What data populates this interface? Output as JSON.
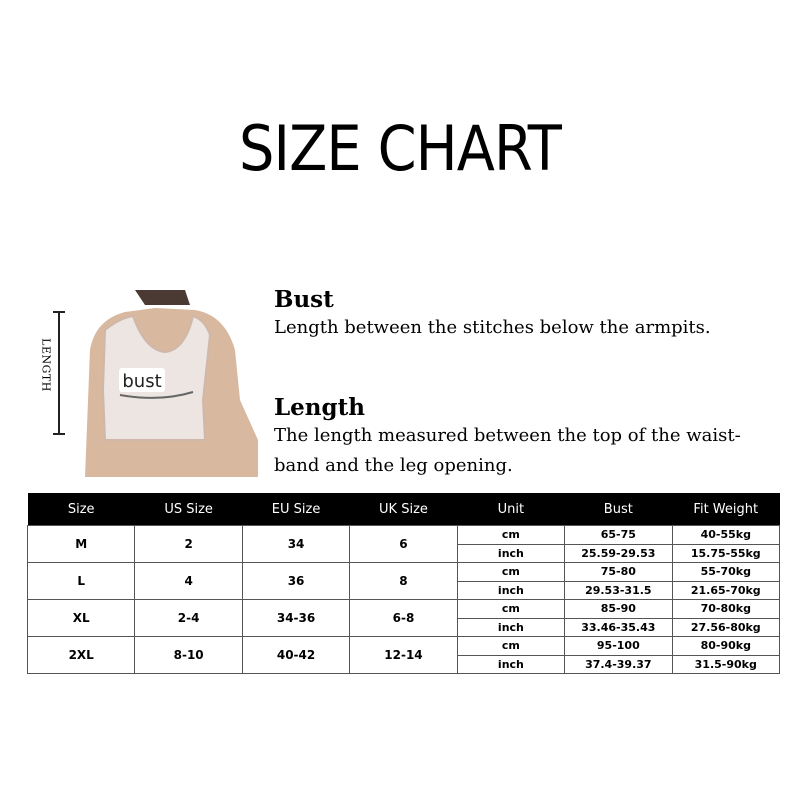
{
  "title": "SIZE CHART",
  "image": {
    "bust_label": "bust",
    "length_label": "LENGTH"
  },
  "bust": {
    "heading": "Bust",
    "text": "Length between the stitches below the armpits."
  },
  "length": {
    "heading": "Length",
    "text_line1": "The length measured between the top of the waist-",
    "text_line2": "band and the leg opening."
  },
  "table": {
    "headers": [
      "Size",
      "US Size",
      "EU Size",
      "UK Size",
      "Unit",
      "Bust",
      "Fit Weight"
    ],
    "rows": [
      {
        "size": "M",
        "us": "2",
        "eu": "34",
        "uk": "6",
        "cm": {
          "unit": "cm",
          "bust": "65-75",
          "weight": "40-55kg"
        },
        "inch": {
          "unit": "inch",
          "bust": "25.59-29.53",
          "weight": "15.75-55kg"
        }
      },
      {
        "size": "L",
        "us": "4",
        "eu": "36",
        "uk": "8",
        "cm": {
          "unit": "cm",
          "bust": "75-80",
          "weight": "55-70kg"
        },
        "inch": {
          "unit": "inch",
          "bust": "29.53-31.5",
          "weight": "21.65-70kg"
        }
      },
      {
        "size": "XL",
        "us": "2-4",
        "eu": "34-36",
        "uk": "6-8",
        "cm": {
          "unit": "cm",
          "bust": "85-90",
          "weight": "70-80kg"
        },
        "inch": {
          "unit": "inch",
          "bust": "33.46-35.43",
          "weight": "27.56-80kg"
        }
      },
      {
        "size": "2XL",
        "us": "8-10",
        "eu": "40-42",
        "uk": "12-14",
        "cm": {
          "unit": "cm",
          "bust": "95-100",
          "weight": "80-90kg"
        },
        "inch": {
          "unit": "inch",
          "bust": "37.4-39.37",
          "weight": "31.5-90kg"
        }
      }
    ]
  }
}
